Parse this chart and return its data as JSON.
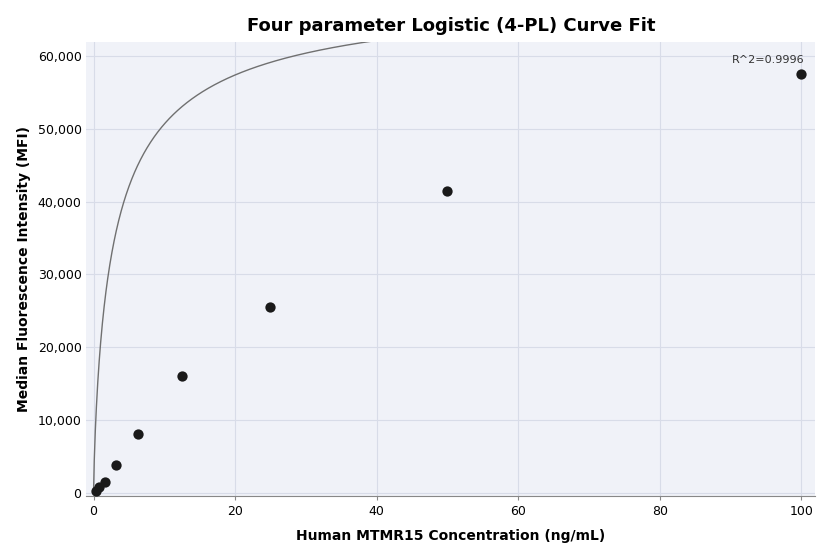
{
  "title": "Four parameter Logistic (4-PL) Curve Fit",
  "xlabel": "Human MTMR15 Concentration (ng/mL)",
  "ylabel": "Median Fluorescence Intensity (MFI)",
  "scatter_x": [
    0.4,
    0.78,
    1.56,
    3.13,
    6.25,
    12.5,
    25.0,
    50.0,
    100.0
  ],
  "scatter_y": [
    200,
    800,
    1500,
    3800,
    8000,
    16000,
    25500,
    41500,
    57500
  ],
  "xlim": [
    -1,
    102
  ],
  "ylim": [
    -500,
    62000
  ],
  "xticks": [
    0,
    20,
    40,
    60,
    80,
    100
  ],
  "yticks": [
    0,
    10000,
    20000,
    30000,
    40000,
    50000,
    60000
  ],
  "r_squared_text": "R^2=0.9996",
  "dot_color": "#1a1a1a",
  "dot_size": 55,
  "line_color": "#707070",
  "grid_color": "#d8dce8",
  "plot_bg_color": "#f0f2f8",
  "fig_bg_color": "#ffffff",
  "title_fontsize": 13,
  "label_fontsize": 10,
  "tick_fontsize": 9
}
